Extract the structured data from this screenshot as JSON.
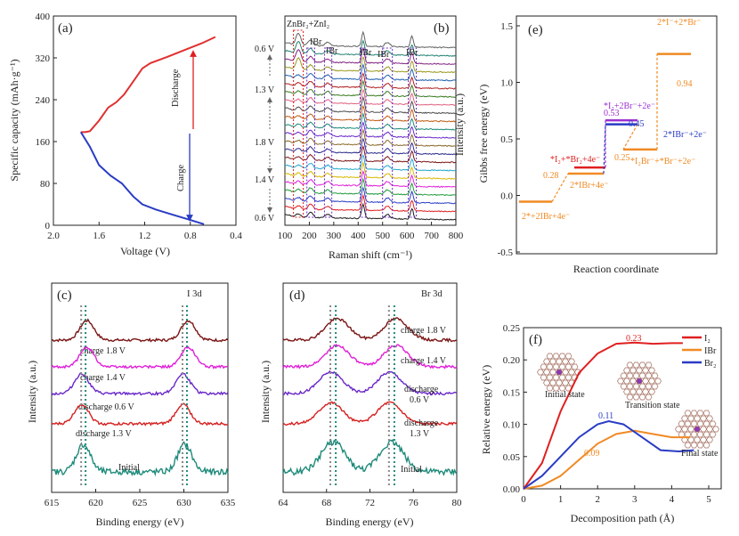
{
  "chart_data": [
    {
      "id": "a",
      "label": "(a)",
      "type": "line",
      "xlabel": "Voltage (V)",
      "ylabel": "Specific capacity (mAh·g⁻¹)",
      "xlim": [
        2.0,
        0.4
      ],
      "ylim": [
        0,
        400
      ],
      "xticks": [
        "2.0",
        "1.6",
        "1.2",
        "0.8",
        "0.4"
      ],
      "yticks": [
        "0",
        "80",
        "160",
        "240",
        "320",
        "400"
      ],
      "annotations": [
        "Discharge",
        "Charge"
      ],
      "series": [
        {
          "name": "Discharge",
          "color": "#e03030",
          "points": [
            [
              1.76,
              178
            ],
            [
              1.72,
              178
            ],
            [
              1.68,
              180
            ],
            [
              1.6,
              200
            ],
            [
              1.52,
              225
            ],
            [
              1.45,
              235
            ],
            [
              1.38,
              250
            ],
            [
              1.3,
              275
            ],
            [
              1.22,
              300
            ],
            [
              1.15,
              310
            ],
            [
              1.0,
              322
            ],
            [
              0.85,
              335
            ],
            [
              0.7,
              348
            ],
            [
              0.58,
              360
            ]
          ]
        },
        {
          "name": "Charge",
          "color": "#2a3cc4",
          "points": [
            [
              1.76,
              178
            ],
            [
              1.68,
              150
            ],
            [
              1.6,
              115
            ],
            [
              1.5,
              95
            ],
            [
              1.4,
              80
            ],
            [
              1.3,
              55
            ],
            [
              1.22,
              40
            ],
            [
              1.1,
              30
            ],
            [
              0.95,
              20
            ],
            [
              0.8,
              10
            ],
            [
              0.68,
              2
            ]
          ]
        }
      ]
    },
    {
      "id": "b",
      "label": "(b)",
      "type": "line",
      "xlabel": "Raman shift (cm⁻¹)",
      "ylabel": "Intensity (a.u.)",
      "xlim": [
        100,
        800
      ],
      "xticks": [
        "100",
        "200",
        "300",
        "400",
        "500",
        "600",
        "700",
        "800"
      ],
      "voltage_labels": [
        "0.6 V",
        "1.3 V",
        "1.8 V",
        "1.4 V",
        "0.6 V"
      ],
      "peak_labels": [
        "ZnBr₂+ZnI₂",
        "IBr",
        "IBr",
        "IBr",
        "IBr",
        "IBr"
      ],
      "spectra_count": 22,
      "peaks_cm": [
        155,
        205,
        275,
        420,
        520,
        620
      ]
    },
    {
      "id": "e",
      "label": "(e)",
      "type": "line",
      "xlabel": "Reaction coordinate",
      "ylabel": "Gibbs free energy (eV)",
      "ylim": [
        -0.5,
        1.75
      ],
      "yticks": [
        "-0.5",
        "0.0",
        "0.5",
        "1.0",
        "1.5"
      ],
      "levels": [
        {
          "name": "2*+2IBr+4e⁻",
          "energy": 0.0,
          "color": "#f08a24"
        },
        {
          "name": "2*IBr+4e⁻",
          "energy": 0.28,
          "color": "#f08a24"
        },
        {
          "name": "*I₂+*Br₂+4e⁻",
          "energy": 0.34,
          "color": "#e02020"
        },
        {
          "name": "*I₂+2Br⁻+2e⁻",
          "energy": 0.81,
          "color": "#9b30d0"
        },
        {
          "name": "2*IBr⁻+2e⁻",
          "energy": 0.77,
          "color": "#2a3cc4"
        },
        {
          "name": "*I₂Br⁻+*Br⁻+2e⁻",
          "energy": 0.52,
          "color": "#f08a24"
        },
        {
          "name": "2*I⁻+2*Br⁻",
          "energy": 1.47,
          "color": "#f08a24"
        }
      ],
      "step_labels": [
        "0.28",
        "0.53",
        "0.45",
        "0.25",
        "0.94"
      ]
    },
    {
      "id": "c",
      "label": "(c)",
      "type": "line",
      "title": "I 3d",
      "xlabel": "Binding energy (eV)",
      "ylabel": "Intensity (a.u.)",
      "xlim": [
        615,
        635
      ],
      "xticks": [
        "615",
        "620",
        "625",
        "630",
        "635"
      ],
      "peaks_eV": [
        618.6,
        630.1
      ],
      "series": [
        {
          "name": "charge 1.8 V",
          "color": "#7a1515"
        },
        {
          "name": "charge 1.4 V",
          "color": "#e020d8"
        },
        {
          "name": "discharge 0.6 V",
          "color": "#6a28c8"
        },
        {
          "name": "discharge 1.3 V",
          "color": "#d42020"
        },
        {
          "name": "Initial",
          "color": "#1e8a7a"
        }
      ]
    },
    {
      "id": "d",
      "label": "(d)",
      "type": "line",
      "title": "Br 3d",
      "xlabel": "Binding energy (eV)",
      "ylabel": "Intensity (a.u.)",
      "xlim": [
        64,
        80
      ],
      "xticks": [
        "64",
        "68",
        "72",
        "76",
        "80"
      ],
      "peaks_eV": [
        68.6,
        74.0
      ],
      "series": [
        {
          "name": "charge 1.8 V",
          "color": "#7a1515"
        },
        {
          "name": "charge 1.4 V",
          "color": "#e020d8"
        },
        {
          "name": "discharge 0.6 V",
          "color": "#6a28c8"
        },
        {
          "name": "discharge 1.3 V",
          "color": "#d42020"
        },
        {
          "name": "Initial",
          "color": "#1e8a7a"
        }
      ]
    },
    {
      "id": "f",
      "label": "(f)",
      "type": "line",
      "xlabel": "Decomposition path (Å)",
      "ylabel": "Relative energy (eV)",
      "xlim": [
        0,
        5
      ],
      "ylim": [
        0,
        0.25
      ],
      "xticks": [
        "0",
        "1",
        "2",
        "3",
        "4",
        "5"
      ],
      "yticks": [
        "0.00",
        "0.05",
        "0.10",
        "0.15",
        "0.20",
        "0.25"
      ],
      "state_labels": [
        "Initial state",
        "Transition state",
        "Final state"
      ],
      "series": [
        {
          "name": "I₂",
          "color": "#e02020",
          "peak_label": "0.23",
          "points": [
            [
              0,
              0
            ],
            [
              0.5,
              0.04
            ],
            [
              1,
              0.12
            ],
            [
              1.5,
              0.18
            ],
            [
              2,
              0.21
            ],
            [
              2.5,
              0.225
            ],
            [
              3,
              0.227
            ],
            [
              3.5,
              0.225
            ],
            [
              4,
              0.226
            ],
            [
              4.3,
              0.226
            ]
          ]
        },
        {
          "name": "IBr",
          "color": "#f08a24",
          "peak_label": "0.09",
          "points": [
            [
              0,
              0
            ],
            [
              0.5,
              0.005
            ],
            [
              1,
              0.02
            ],
            [
              1.5,
              0.045
            ],
            [
              2,
              0.07
            ],
            [
              2.5,
              0.085
            ],
            [
              3,
              0.09
            ],
            [
              3.5,
              0.085
            ],
            [
              4,
              0.08
            ],
            [
              4.5,
              0.08
            ]
          ]
        },
        {
          "name": "Br₂",
          "color": "#2a3cc4",
          "peak_label": "0.11",
          "points": [
            [
              0,
              0
            ],
            [
              0.5,
              0.02
            ],
            [
              1,
              0.05
            ],
            [
              1.5,
              0.08
            ],
            [
              2,
              0.1
            ],
            [
              2.3,
              0.105
            ],
            [
              2.7,
              0.1
            ],
            [
              3.2,
              0.08
            ],
            [
              3.7,
              0.06
            ],
            [
              4.2,
              0.058
            ],
            [
              4.6,
              0.06
            ]
          ]
        }
      ]
    }
  ]
}
